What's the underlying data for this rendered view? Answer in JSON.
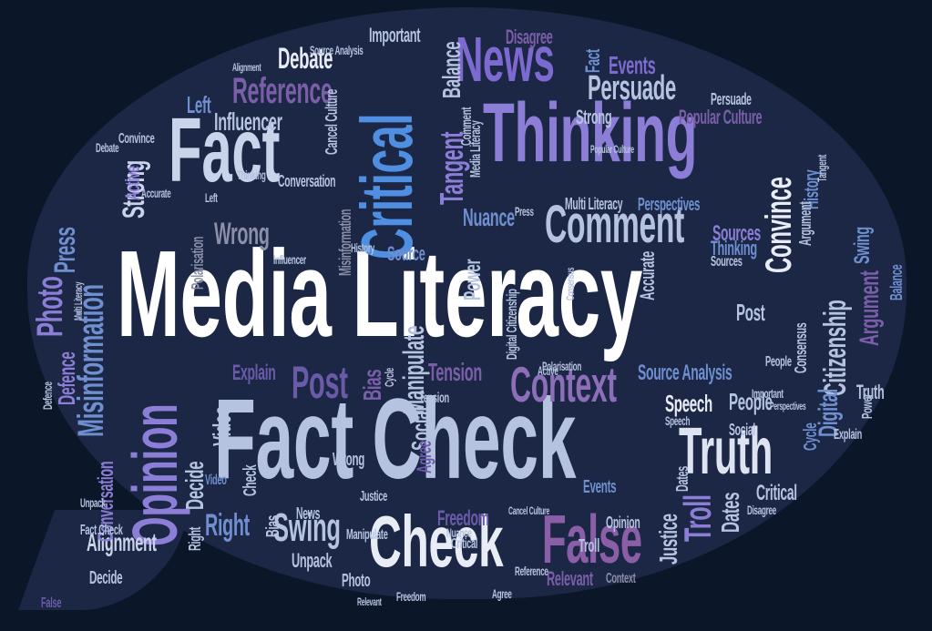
{
  "cloud": {
    "title": "Media Literacy",
    "background_color": "#0b1628",
    "bubble_color": "#1b2744",
    "words": [
      {
        "text": "Media Literacy",
        "color": "#ffffff"
      },
      {
        "text": "Fact Check",
        "color": "#b6c3e0"
      },
      {
        "text": "Thinking",
        "color": "#8c7ed6"
      },
      {
        "text": "Fact",
        "color": "#c9d3ea"
      },
      {
        "text": "Critical",
        "color": "#4f8ee0"
      },
      {
        "text": "News",
        "color": "#7d6ad0"
      },
      {
        "text": "Check",
        "color": "#e8ecf5"
      },
      {
        "text": "False",
        "color": "#8a5fa8"
      },
      {
        "text": "Truth",
        "color": "#dde3f0"
      },
      {
        "text": "Opinion",
        "color": "#8c7ed6"
      },
      {
        "text": "Misinformation",
        "color": "#6f8fd0"
      },
      {
        "text": "Comment",
        "color": "#b6c3e0"
      },
      {
        "text": "Context",
        "color": "#8c6fb8"
      },
      {
        "text": "Post",
        "color": "#6a5aa8"
      },
      {
        "text": "Reference",
        "color": "#7a5fa8"
      },
      {
        "text": "Persuade",
        "color": "#b6c3e0"
      },
      {
        "text": "Convince",
        "color": "#e8ecf5"
      },
      {
        "text": "Swing",
        "color": "#b6c3e0"
      },
      {
        "text": "Wrong",
        "color": "#8c8fa8"
      },
      {
        "text": "Tangent",
        "color": "#8c7ed6"
      },
      {
        "text": "Debate",
        "color": "#e8ecf5"
      },
      {
        "text": "Strong",
        "color": "#c9d3ea"
      },
      {
        "text": "Photo",
        "color": "#8c7ed6"
      },
      {
        "text": "Press",
        "color": "#6f8fd0"
      },
      {
        "text": "Manipulate",
        "color": "#b6c3e0"
      },
      {
        "text": "Troll",
        "color": "#8c7ed6"
      },
      {
        "text": "Right",
        "color": "#6f8fd0"
      },
      {
        "text": "Alignment",
        "color": "#c9d3ea"
      },
      {
        "text": "Citizenship",
        "color": "#b6c3e0"
      },
      {
        "text": "Digital",
        "color": "#6f8fd0"
      },
      {
        "text": "Argument",
        "color": "#7a5fa8"
      },
      {
        "text": "Influencer",
        "color": "#b6c3e0"
      },
      {
        "text": "Balance",
        "color": "#b6c3e0"
      },
      {
        "text": "Events",
        "color": "#7d6ad0"
      },
      {
        "text": "Nuance",
        "color": "#6f8fd0"
      },
      {
        "text": "Speech",
        "color": "#e8ecf5"
      },
      {
        "text": "Source Analysis",
        "color": "#6f8fd0"
      },
      {
        "text": "People",
        "color": "#b6c3e0"
      },
      {
        "text": "Tension",
        "color": "#7a5fa8"
      },
      {
        "text": "Bias",
        "color": "#7a5fa8"
      },
      {
        "text": "Social",
        "color": "#b6c3e0"
      },
      {
        "text": "Freedom",
        "color": "#6a5aa8"
      },
      {
        "text": "Relevant",
        "color": "#7a5fa8"
      },
      {
        "text": "Justice",
        "color": "#b6c3e0"
      },
      {
        "text": "Dates",
        "color": "#b6c3e0"
      },
      {
        "text": "Critical",
        "color": "#b6c3e0"
      },
      {
        "text": "Decide",
        "color": "#b6c3e0"
      },
      {
        "text": "Video",
        "color": "#b6c3e0"
      },
      {
        "text": "Conversation",
        "color": "#8c7ed6"
      },
      {
        "text": "Unpack",
        "color": "#b6c3e0"
      },
      {
        "text": "Sources",
        "color": "#8c7ed6"
      },
      {
        "text": "Popular Culture",
        "color": "#7a5fa8"
      },
      {
        "text": "Important",
        "color": "#b6c3e0"
      },
      {
        "text": "Disagree",
        "color": "#7a5fa8"
      },
      {
        "text": "Multi Literacy",
        "color": "#b6c3e0"
      },
      {
        "text": "Perspectives",
        "color": "#6f8fd0"
      },
      {
        "text": "Active",
        "color": "#8c7ed6"
      },
      {
        "text": "Left",
        "color": "#6f8fd0"
      },
      {
        "text": "Explain",
        "color": "#6a5aa8"
      },
      {
        "text": "Agree",
        "color": "#6a5aa8"
      },
      {
        "text": "Accurate",
        "color": "#b6c3e0"
      },
      {
        "text": "Polarisation",
        "color": "#8c8fa8"
      },
      {
        "text": "Power",
        "color": "#b6c3e0"
      },
      {
        "text": "History",
        "color": "#6f8fd0"
      },
      {
        "text": "Thinking",
        "color": "#6f8fd0"
      },
      {
        "text": "Cycle",
        "color": "#6f8fd0"
      },
      {
        "text": "Defence",
        "color": "#8c7ed6"
      },
      {
        "text": "Fact",
        "color": "#6f8fd0"
      },
      {
        "text": "False",
        "color": "#6a5aa8"
      },
      {
        "text": "Truth",
        "color": "#b6c3e0"
      },
      {
        "text": "Cancel Culture",
        "color": "#b6c3e0"
      },
      {
        "text": "Consensus",
        "color": "#b6c3e0"
      },
      {
        "text": "Media Literacy",
        "color": "#b6c3e0"
      },
      {
        "text": "Check",
        "color": "#b6c3e0"
      },
      {
        "text": "News",
        "color": "#b6c3e0"
      },
      {
        "text": "Comment",
        "color": "#b6c3e0"
      },
      {
        "text": "Opinion",
        "color": "#b6c3e0"
      },
      {
        "text": "Fact Check",
        "color": "#b6c3e0"
      },
      {
        "text": "Photo",
        "color": "#b6c3e0"
      },
      {
        "text": "Post",
        "color": "#b6c3e0"
      },
      {
        "text": "Right",
        "color": "#b6c3e0"
      },
      {
        "text": "Decide",
        "color": "#b6c3e0"
      },
      {
        "text": "Swing",
        "color": "#6f8fd0"
      },
      {
        "text": "Balance",
        "color": "#6f8fd0"
      },
      {
        "text": "Explain",
        "color": "#b6c3e0"
      },
      {
        "text": "Power",
        "color": "#b6c3e0"
      },
      {
        "text": "Events",
        "color": "#6f8fd0"
      },
      {
        "text": "Troll",
        "color": "#b6c3e0"
      },
      {
        "text": "Context",
        "color": "#8c8fa8"
      },
      {
        "text": "Misinformation",
        "color": "#8c8fa8"
      },
      {
        "text": "Conversation",
        "color": "#b6c3e0"
      },
      {
        "text": "Argument",
        "color": "#b6c3e0"
      },
      {
        "text": "Digital Citizenship",
        "color": "#b6c3e0"
      },
      {
        "text": "Freedom",
        "color": "#b6c3e0"
      },
      {
        "text": "Manipulate",
        "color": "#b6c3e0"
      },
      {
        "text": "Relevant",
        "color": "#b6c3e0"
      },
      {
        "text": "Justice",
        "color": "#b6c3e0"
      },
      {
        "text": "Source",
        "color": "#6f8fd0"
      },
      {
        "text": "Wrong",
        "color": "#b6c3e0"
      },
      {
        "text": "Strong",
        "color": "#b6c3e0"
      },
      {
        "text": "People",
        "color": "#b6c3e0"
      },
      {
        "text": "Dates",
        "color": "#b6c3e0"
      },
      {
        "text": "Tension",
        "color": "#b6c3e0"
      },
      {
        "text": "Video",
        "color": "#6f8fd0"
      },
      {
        "text": "Agree",
        "color": "#b6c3e0"
      },
      {
        "text": "Bias",
        "color": "#b6c3e0"
      },
      {
        "text": "Critical",
        "color": "#b6c3e0"
      },
      {
        "text": "Speech",
        "color": "#b6c3e0"
      },
      {
        "text": "Convince",
        "color": "#b6c3e0"
      },
      {
        "text": "Debate",
        "color": "#b6c3e0"
      },
      {
        "text": "Persuade",
        "color": "#b6c3e0"
      },
      {
        "text": "Influencer",
        "color": "#b6c3e0"
      },
      {
        "text": "Social",
        "color": "#b6c3e0"
      },
      {
        "text": "Disagree",
        "color": "#b6c3e0"
      },
      {
        "text": "Unpack",
        "color": "#b6c3e0"
      },
      {
        "text": "Press",
        "color": "#b6c3e0"
      },
      {
        "text": "Sources",
        "color": "#b6c3e0"
      },
      {
        "text": "Polarisation",
        "color": "#b6c3e0"
      },
      {
        "text": "Important",
        "color": "#b6c3e0"
      },
      {
        "text": "History",
        "color": "#b6c3e0"
      },
      {
        "text": "Cycle",
        "color": "#b6c3e0"
      },
      {
        "text": "Defence",
        "color": "#b6c3e0"
      },
      {
        "text": "Accurate",
        "color": "#b6c3e0"
      },
      {
        "text": "Source Analysis",
        "color": "#b6c3e0"
      },
      {
        "text": "Left",
        "color": "#b6c3e0"
      },
      {
        "text": "Alignment",
        "color": "#b6c3e0"
      },
      {
        "text": "Multi Literacy",
        "color": "#b6c3e0"
      },
      {
        "text": "Cancel Culture",
        "color": "#b6c3e0"
      },
      {
        "text": "Popular Culture",
        "color": "#b6c3e0"
      },
      {
        "text": "Consensus",
        "color": "#b6c3e0"
      },
      {
        "text": "Perspectives",
        "color": "#b6c3e0"
      },
      {
        "text": "Tangent",
        "color": "#b6c3e0"
      },
      {
        "text": "Active",
        "color": "#b6c3e0"
      },
      {
        "text": "Thinking",
        "color": "#b6c3e0"
      },
      {
        "text": "Nuance",
        "color": "#b6c3e0"
      },
      {
        "text": "Reference",
        "color": "#b6c3e0"
      }
    ]
  }
}
